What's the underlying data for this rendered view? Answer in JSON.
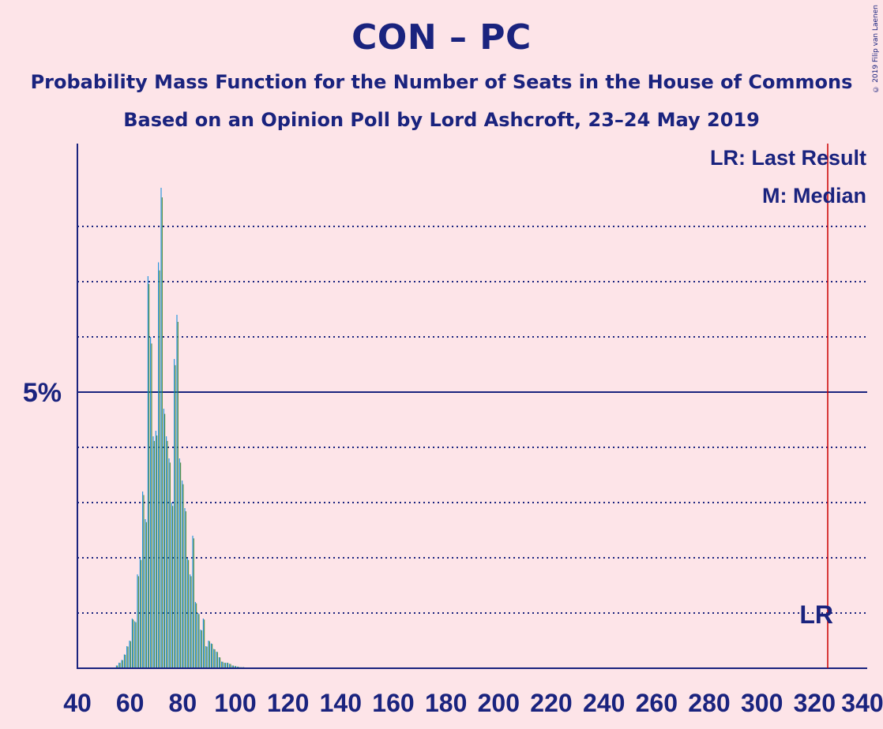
{
  "title": "CON – PC",
  "subtitle_1": "Probability Mass Function for the Number of Seats in the House of Commons",
  "subtitle_2": "Based on an Opinion Poll by Lord Ashcroft, 23–24 May 2019",
  "copyright": "© 2019 Filip van Laenen",
  "legend": {
    "last_result": "LR: Last Result",
    "median": "M: Median"
  },
  "lr_marker": "LR",
  "colors": {
    "background": "#fde4e8",
    "axis": "#1a237e",
    "last_result_line": "#cc0000",
    "bar_con": "#0087dc",
    "bar_pc": "#3f8428"
  },
  "chart_data": {
    "type": "bar",
    "title": "CON – PC",
    "xlabel": "",
    "ylabel": "",
    "x_ticks": [
      40,
      60,
      80,
      100,
      120,
      140,
      160,
      180,
      200,
      220,
      240,
      260,
      280,
      300,
      320,
      340
    ],
    "y_tick_labels": [
      {
        "value": 5,
        "label": "5%"
      }
    ],
    "xlim": [
      40,
      340
    ],
    "ylim": [
      0,
      9.5
    ],
    "gridlines_dotted": [
      1,
      2,
      3,
      4,
      6,
      7,
      8
    ],
    "gridline_solid": 5,
    "last_result": 325,
    "seats": [
      55,
      56,
      57,
      58,
      59,
      60,
      61,
      62,
      63,
      64,
      65,
      66,
      67,
      68,
      69,
      70,
      71,
      72,
      73,
      74,
      75,
      76,
      77,
      78,
      79,
      80,
      81,
      82,
      83,
      84,
      85,
      86,
      87,
      88,
      89,
      90,
      91,
      92,
      93,
      94,
      95,
      96,
      97,
      98,
      99,
      100,
      101,
      102,
      103,
      104,
      105
    ],
    "probabilities": [
      0.05,
      0.1,
      0.15,
      0.25,
      0.4,
      0.5,
      0.9,
      0.85,
      1.7,
      2.0,
      3.2,
      2.7,
      7.1,
      6.0,
      4.2,
      4.3,
      7.35,
      8.7,
      4.7,
      4.2,
      3.8,
      3.0,
      5.6,
      6.4,
      3.8,
      3.4,
      2.9,
      2.0,
      1.7,
      2.4,
      1.2,
      1.0,
      0.7,
      0.9,
      0.4,
      0.5,
      0.45,
      0.35,
      0.3,
      0.2,
      0.12,
      0.1,
      0.1,
      0.08,
      0.05,
      0.04,
      0.03,
      0.02,
      0.02,
      0.01,
      0.01
    ]
  }
}
